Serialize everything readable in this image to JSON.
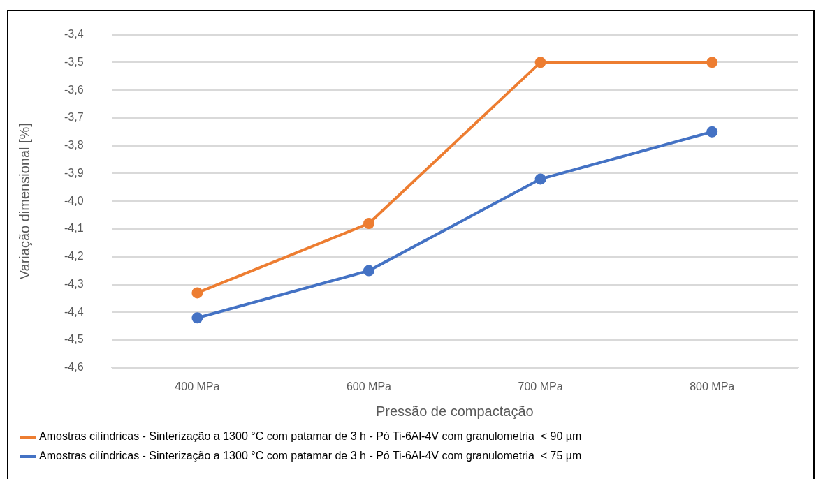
{
  "chart_data": {
    "type": "line",
    "xlabel": "Pressão de compactação",
    "ylabel": "Variação dimensional [%]",
    "categories": [
      "400 MPa",
      "600 MPa",
      "700 MPa",
      "800 MPa"
    ],
    "series": [
      {
        "name": "Amostras cilíndricas - Sinterização a 1300 °C com patamar de 3 h - Pó Ti-6Al-4V com granulometria  < 90 µm",
        "color": "#ed7d31",
        "values": [
          -4.33,
          -4.08,
          -3.5,
          -3.5
        ]
      },
      {
        "name": "Amostras cilíndricas - Sinterização a 1300 °C com patamar de 3 h - Pó Ti-6Al-4V com granulometria  < 75 µm",
        "color": "#4472c4",
        "values": [
          -4.42,
          -4.25,
          -3.92,
          -3.75
        ]
      }
    ],
    "ylim": [
      -4.6,
      -3.4
    ],
    "yticks": [
      {
        "value": -4.6,
        "label": "-4,6"
      },
      {
        "value": -4.5,
        "label": "-4,5"
      },
      {
        "value": -4.4,
        "label": "-4,4"
      },
      {
        "value": -4.3,
        "label": "-4,3"
      },
      {
        "value": -4.2,
        "label": "-4,2"
      },
      {
        "value": -4.1,
        "label": "-4,1"
      },
      {
        "value": -4.0,
        "label": "-4,0"
      },
      {
        "value": -3.9,
        "label": "-3,9"
      },
      {
        "value": -3.8,
        "label": "-3,8"
      },
      {
        "value": -3.7,
        "label": "-3,7"
      },
      {
        "value": -3.6,
        "label": "-3,6"
      },
      {
        "value": -3.5,
        "label": "-3,5"
      },
      {
        "value": -3.4,
        "label": "-3,4"
      }
    ],
    "grid": "y",
    "legend": "bottom",
    "marker": "circle",
    "line_style": "solid"
  }
}
